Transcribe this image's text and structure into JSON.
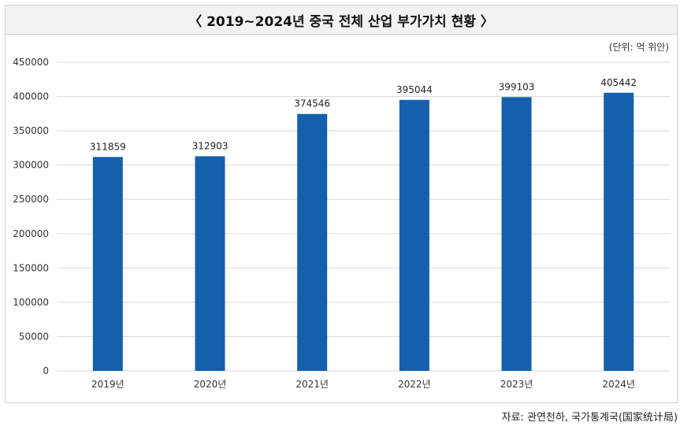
{
  "title": "〈 2019~2024년 중국 전체 산업 부가가치 현황 〉",
  "unit_label": "(단위: 억 위안)",
  "source": "자료: 관연천하, 국가통계국(国家统计局)",
  "colors": {
    "bar": "#1560ad",
    "grid": "#d9d9d9"
  },
  "chart_data": {
    "type": "bar",
    "title": "〈 2019~2024년 중국 전체 산업 부가가치 현황 〉",
    "xlabel": "",
    "ylabel": "",
    "categories": [
      "2019년",
      "2020년",
      "2021년",
      "2022년",
      "2023년",
      "2024년"
    ],
    "values": [
      311859,
      312903,
      374546,
      395044,
      399103,
      405442
    ],
    "ylim": [
      0,
      450000
    ],
    "yticks": [
      0,
      50000,
      100000,
      150000,
      200000,
      250000,
      300000,
      350000,
      400000,
      450000
    ],
    "grid": true,
    "legend": "none"
  }
}
